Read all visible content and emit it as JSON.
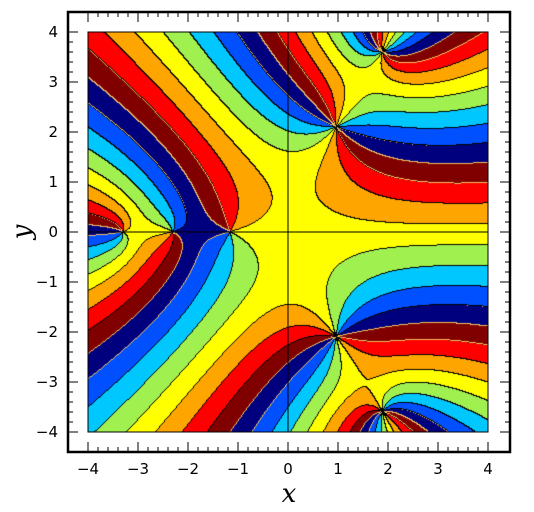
{
  "chart_data": {
    "type": "heatmap",
    "title": "",
    "xlabel": "x",
    "ylabel": "y",
    "xlim": [
      -4,
      4
    ],
    "ylim": [
      -4,
      4
    ],
    "xticks": [
      "−4",
      "−3",
      "−2",
      "−1",
      "0",
      "1",
      "2",
      "3",
      "4"
    ],
    "yticks": [
      "4",
      "3",
      "2",
      "1",
      "0",
      "−1",
      "−2",
      "−3",
      "−4"
    ],
    "grid": false,
    "legend": "none",
    "phase_colors": [
      "#ffff00",
      "#ffa500",
      "#ff0000",
      "#800000",
      "#00007f",
      "#0050ff",
      "#00c8ff",
      "#a0f050"
    ],
    "contour_color_light": "#f0c060",
    "contour_color_dark": "#000000",
    "zero_axes_color": "#000000"
  }
}
